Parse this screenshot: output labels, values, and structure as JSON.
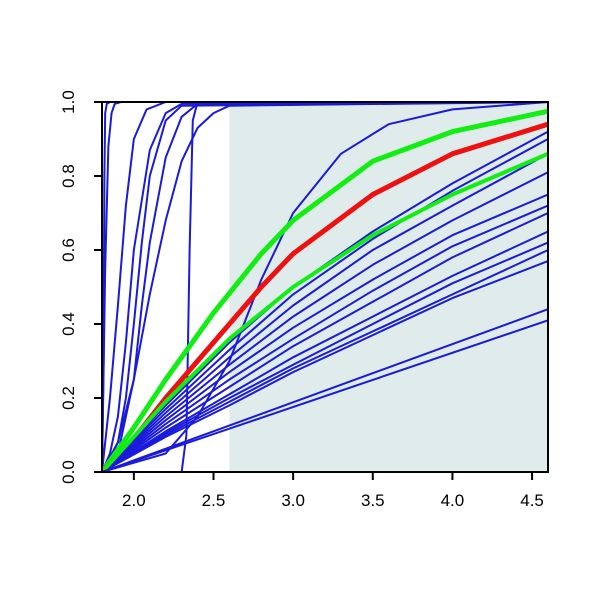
{
  "chart_data": {
    "type": "line",
    "title": "",
    "xlabel": "",
    "ylabel": "",
    "xlim": [
      1.8,
      4.6
    ],
    "ylim": [
      0,
      1
    ],
    "xticks": [
      2.0,
      2.5,
      3.0,
      3.5,
      4.0,
      4.5
    ],
    "xtick_labels": [
      "2.0",
      "2.5",
      "3.0",
      "3.5",
      "4.0",
      "4.5"
    ],
    "yticks": [
      0.0,
      0.2,
      0.4,
      0.6,
      0.8,
      1.0
    ],
    "ytick_labels": [
      "0.0",
      "0.2",
      "0.4",
      "0.6",
      "0.8",
      "1.0"
    ],
    "grid": false,
    "legend": false,
    "shaded_region": {
      "x_from": 2.6,
      "x_to": 4.6,
      "color": "#e0ecec"
    },
    "colors": {
      "blue": "#1a1adb",
      "red": "#ee1111",
      "green": "#11ee11",
      "axis": "#000000"
    },
    "series": [
      {
        "color": "blue",
        "width": 2,
        "x": [
          1.8,
          1.81,
          1.815,
          1.82,
          1.83,
          1.85,
          4.6
        ],
        "y": [
          0,
          0.3,
          0.8,
          0.97,
          0.995,
          1.0,
          1.0
        ]
      },
      {
        "color": "blue",
        "width": 2,
        "x": [
          1.8,
          1.82,
          1.84,
          1.86,
          1.88,
          1.92,
          4.6
        ],
        "y": [
          0,
          0.55,
          0.88,
          0.97,
          0.995,
          1.0,
          1.0
        ]
      },
      {
        "color": "blue",
        "width": 2,
        "x": [
          1.8,
          1.85,
          1.9,
          1.95,
          2.0,
          2.08,
          2.2,
          4.6
        ],
        "y": [
          0,
          0.2,
          0.45,
          0.72,
          0.9,
          0.98,
          1.0,
          1.0
        ]
      },
      {
        "color": "blue",
        "width": 2,
        "x": [
          1.8,
          1.85,
          1.9,
          1.95,
          2.0,
          2.1,
          2.2,
          2.3,
          4.6
        ],
        "y": [
          0,
          0.05,
          0.15,
          0.35,
          0.6,
          0.87,
          0.97,
          0.995,
          1.0
        ]
      },
      {
        "color": "blue",
        "width": 2,
        "x": [
          1.8,
          1.9,
          1.95,
          2.0,
          2.05,
          2.1,
          2.2,
          2.3,
          4.6
        ],
        "y": [
          0,
          0.08,
          0.2,
          0.4,
          0.62,
          0.8,
          0.95,
          0.99,
          1.0
        ]
      },
      {
        "color": "blue",
        "width": 2,
        "x": [
          1.8,
          1.9,
          2.0,
          2.05,
          2.1,
          2.2,
          2.3,
          2.4,
          4.6
        ],
        "y": [
          0,
          0.05,
          0.25,
          0.45,
          0.62,
          0.85,
          0.96,
          0.995,
          1.0
        ]
      },
      {
        "color": "blue",
        "width": 2,
        "x": [
          1.8,
          1.9,
          2.0,
          2.1,
          2.2,
          2.3,
          2.4,
          2.5,
          2.6,
          4.6
        ],
        "y": [
          0,
          0.08,
          0.25,
          0.48,
          0.68,
          0.84,
          0.93,
          0.97,
          0.99,
          1.0
        ]
      },
      {
        "color": "blue",
        "width": 2,
        "x": [
          2.3,
          2.33,
          2.35,
          2.37,
          2.4,
          4.6
        ],
        "y": [
          0,
          0.1,
          0.6,
          0.95,
          1.0,
          1.0
        ]
      },
      {
        "color": "blue",
        "width": 2,
        "x": [
          1.8,
          2.2,
          2.4,
          2.6,
          2.8,
          3.0,
          3.3,
          3.6,
          4.0,
          4.6
        ],
        "y": [
          0,
          0.05,
          0.15,
          0.3,
          0.52,
          0.7,
          0.86,
          0.94,
          0.98,
          1.0
        ]
      },
      {
        "color": "green",
        "width": 5,
        "x": [
          1.8,
          2.0,
          2.2,
          2.5,
          2.8,
          3.0,
          3.5,
          4.0,
          4.6
        ],
        "y": [
          0,
          0.12,
          0.25,
          0.43,
          0.59,
          0.68,
          0.84,
          0.92,
          0.975
        ]
      },
      {
        "color": "red",
        "width": 5,
        "x": [
          1.8,
          2.0,
          2.2,
          2.5,
          2.8,
          3.0,
          3.5,
          4.0,
          4.6
        ],
        "y": [
          0,
          0.09,
          0.2,
          0.35,
          0.5,
          0.59,
          0.75,
          0.86,
          0.94
        ]
      },
      {
        "color": "blue",
        "width": 2,
        "x": [
          1.8,
          2.2,
          2.6,
          3.0,
          3.5,
          4.0,
          4.6
        ],
        "y": [
          0,
          0.18,
          0.35,
          0.5,
          0.65,
          0.78,
          0.92
        ]
      },
      {
        "color": "blue",
        "width": 2,
        "x": [
          1.8,
          2.2,
          2.6,
          3.0,
          3.5,
          4.0,
          4.6
        ],
        "y": [
          0,
          0.17,
          0.33,
          0.48,
          0.63,
          0.76,
          0.9
        ]
      },
      {
        "color": "blue",
        "width": 2,
        "x": [
          1.8,
          2.2,
          2.6,
          3.0,
          3.5,
          4.0,
          4.6
        ],
        "y": [
          0,
          0.16,
          0.31,
          0.45,
          0.6,
          0.72,
          0.86
        ]
      },
      {
        "color": "blue",
        "width": 2,
        "x": [
          1.8,
          2.2,
          2.6,
          3.0,
          3.5,
          4.0,
          4.6
        ],
        "y": [
          0,
          0.15,
          0.29,
          0.42,
          0.56,
          0.68,
          0.81
        ]
      },
      {
        "color": "blue",
        "width": 2,
        "x": [
          1.8,
          2.2,
          2.6,
          3.0,
          3.5,
          4.0,
          4.6
        ],
        "y": [
          0,
          0.14,
          0.27,
          0.39,
          0.52,
          0.64,
          0.75
        ]
      },
      {
        "color": "blue",
        "width": 2,
        "x": [
          1.8,
          2.2,
          2.6,
          3.0,
          3.5,
          4.0,
          4.6
        ],
        "y": [
          0,
          0.13,
          0.25,
          0.36,
          0.49,
          0.61,
          0.72
        ]
      },
      {
        "color": "blue",
        "width": 2,
        "x": [
          1.8,
          2.2,
          2.6,
          3.0,
          3.5,
          4.0,
          4.6
        ],
        "y": [
          0,
          0.12,
          0.23,
          0.34,
          0.46,
          0.58,
          0.7
        ]
      },
      {
        "color": "blue",
        "width": 2,
        "x": [
          1.8,
          2.2,
          2.6,
          3.0,
          3.5,
          4.0,
          4.6
        ],
        "y": [
          0,
          0.11,
          0.21,
          0.31,
          0.42,
          0.53,
          0.65
        ]
      },
      {
        "color": "blue",
        "width": 2,
        "x": [
          1.8,
          2.2,
          2.6,
          3.0,
          3.5,
          4.0,
          4.6
        ],
        "y": [
          0,
          0.105,
          0.2,
          0.29,
          0.4,
          0.51,
          0.62
        ]
      },
      {
        "color": "blue",
        "width": 2,
        "x": [
          1.8,
          2.2,
          2.6,
          3.0,
          3.5,
          4.0,
          4.6
        ],
        "y": [
          0,
          0.1,
          0.19,
          0.28,
          0.38,
          0.48,
          0.6
        ]
      },
      {
        "color": "blue",
        "width": 2,
        "x": [
          1.8,
          2.2,
          2.6,
          3.0,
          3.5,
          4.0,
          4.6
        ],
        "y": [
          0,
          0.095,
          0.18,
          0.27,
          0.37,
          0.47,
          0.57
        ]
      },
      {
        "color": "green",
        "width": 4,
        "x": [
          1.8,
          2.2,
          2.6,
          3.0,
          3.5,
          4.0,
          4.6
        ],
        "y": [
          0,
          0.19,
          0.36,
          0.5,
          0.64,
          0.75,
          0.86
        ]
      },
      {
        "color": "blue",
        "width": 2,
        "x": [
          1.8,
          4.6
        ],
        "y": [
          0,
          0.44
        ]
      },
      {
        "color": "blue",
        "width": 2,
        "x": [
          1.8,
          4.6
        ],
        "y": [
          0,
          0.41
        ]
      }
    ]
  }
}
